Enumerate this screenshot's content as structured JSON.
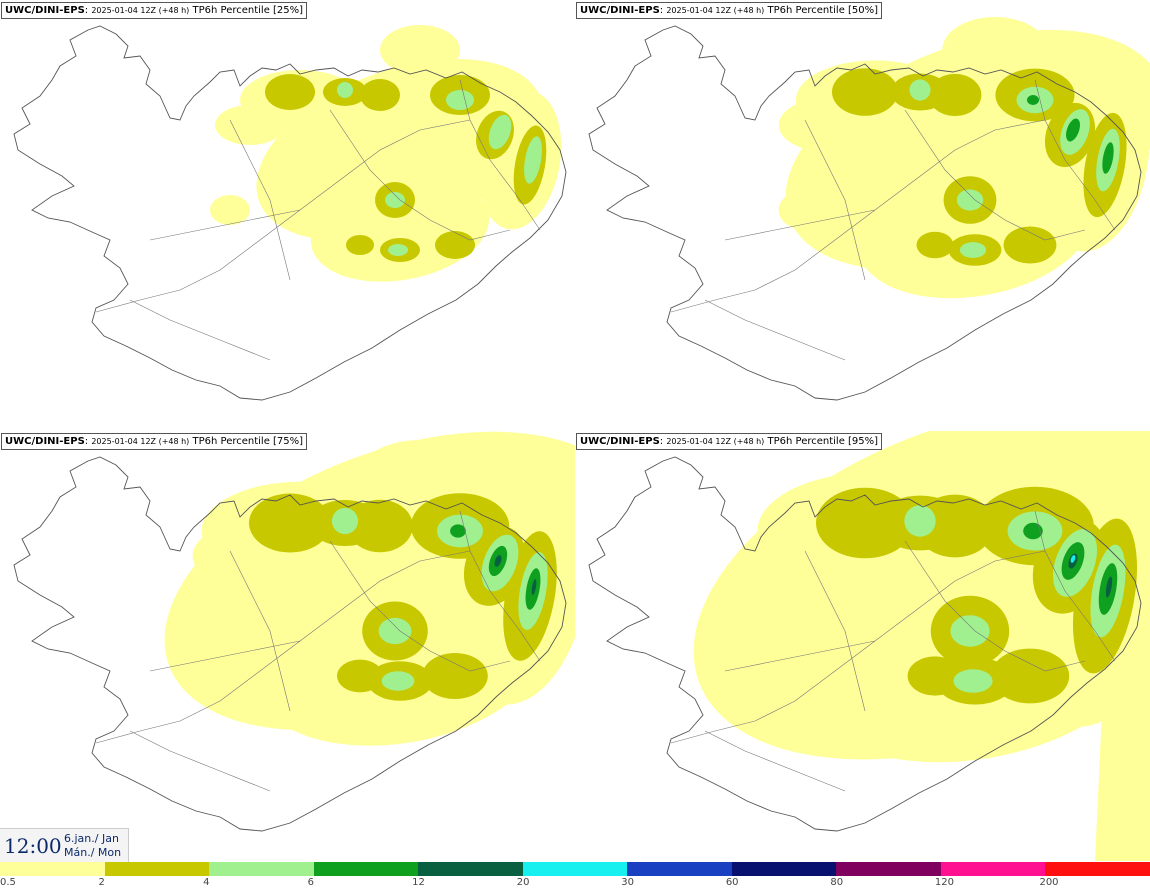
{
  "panels": [
    {
      "model": "UWC/DINI-EPS",
      "run": "2025-01-04 12Z (+48 h)",
      "field": "TP6h Percentile [25%]",
      "level": 1
    },
    {
      "model": "UWC/DINI-EPS",
      "run": "2025-01-04 12Z (+48 h)",
      "field": "TP6h Percentile [50%]",
      "level": 2
    },
    {
      "model": "UWC/DINI-EPS",
      "run": "2025-01-04 12Z (+48 h)",
      "field": "TP6h Percentile [75%]",
      "level": 3
    },
    {
      "model": "UWC/DINI-EPS",
      "run": "2025-01-04 12Z (+48 h)",
      "field": "TP6h Percentile [95%]",
      "level": 4
    }
  ],
  "valid_time": {
    "time": "12:00",
    "date": "6.jan./ Jan",
    "weekday": "Mán./ Mon"
  },
  "legend": {
    "ticks": [
      "0.5",
      "2",
      "4",
      "6",
      "12",
      "20",
      "30",
      "60",
      "80",
      "120",
      "200"
    ],
    "colors": [
      "#ffff99",
      "#c8c800",
      "#a0f090",
      "#10a020",
      "#086040",
      "#18f0f0",
      "#1840c0",
      "#081070",
      "#800060",
      "#ff1090",
      "#ff1010"
    ]
  },
  "colors": {
    "land_outline": "#555555",
    "background": "#ffffff"
  }
}
